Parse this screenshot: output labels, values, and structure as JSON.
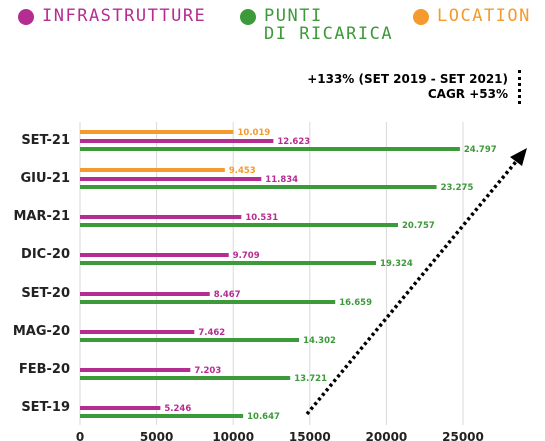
{
  "legend": [
    {
      "label": "INFRASTRUTTURE",
      "color": "#b52d91"
    },
    {
      "label": "PUNTI\nDI RICARICA",
      "color": "#3d9a3a"
    },
    {
      "label": "LOCATION",
      "color": "#f59a2c"
    }
  ],
  "note": {
    "line1": "+133% (SET 2019 - SET 2021)",
    "line2": "CAGR +53%"
  },
  "chart_data": {
    "type": "bar",
    "orientation": "horizontal",
    "categories": [
      "SET-21",
      "GIU-21",
      "MAR-21",
      "DIC-20",
      "SET-20",
      "MAG-20",
      "FEB-20",
      "SET-19"
    ],
    "series": [
      {
        "name": "LOCATION",
        "color": "#f59a2c",
        "values": [
          10019,
          9453,
          null,
          null,
          null,
          null,
          null,
          null
        ],
        "labels": [
          "10.019",
          "9.453",
          "",
          "",
          "",
          "",
          "",
          ""
        ]
      },
      {
        "name": "INFRASTRUTTURE",
        "color": "#b52d91",
        "values": [
          12623,
          11834,
          10531,
          9709,
          8467,
          7462,
          7203,
          5246
        ],
        "labels": [
          "12.623",
          "11.834",
          "10.531",
          "9.709",
          "8.467",
          "7.462",
          "7.203",
          "5.246"
        ]
      },
      {
        "name": "PUNTI DI RICARICA",
        "color": "#3d9a3a",
        "values": [
          24797,
          23275,
          20757,
          19324,
          16659,
          14302,
          13721,
          10647
        ],
        "labels": [
          "24.797",
          "23.275",
          "20.757",
          "19.324",
          "16.659",
          "14.302",
          "13.721",
          "10.647"
        ]
      }
    ],
    "x_ticks": [
      "0",
      "5000",
      "10000",
      "15000",
      "20000",
      "25000"
    ],
    "xlim": [
      0,
      25000
    ],
    "grid": true
  }
}
